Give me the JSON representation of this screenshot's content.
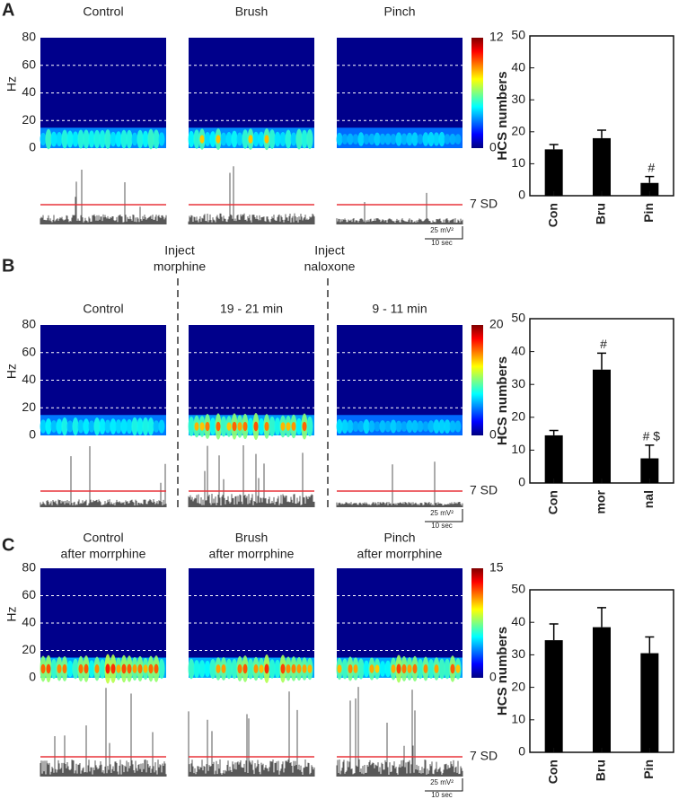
{
  "panels": [
    {
      "letter": "A",
      "titles": [
        [
          "Control"
        ],
        [
          "Brush"
        ],
        [
          "Pinch"
        ]
      ],
      "hz_label": "Hz",
      "hz_lim": [
        0,
        80
      ],
      "hz_ticks": [
        0,
        20,
        40,
        60,
        80
      ],
      "colorbar_ticks": [
        0,
        12
      ],
      "threshold_label": "7 SD",
      "scale_bar": [
        "25 mV²",
        "10 sec"
      ]
    },
    {
      "letter": "B",
      "injections": [
        [
          "Inject",
          "morphine"
        ],
        [
          "Inject",
          "naloxone"
        ]
      ],
      "titles": [
        [
          "Control"
        ],
        [
          "19 - 21 min"
        ],
        [
          "9 - 11 min"
        ]
      ],
      "hz_label": "Hz",
      "hz_lim": [
        0,
        80
      ],
      "hz_ticks": [
        0,
        20,
        40,
        60,
        80
      ],
      "colorbar_ticks": [
        0,
        20
      ],
      "threshold_label": "7 SD",
      "scale_bar": [
        "25 mV²",
        "10 sec"
      ]
    },
    {
      "letter": "C",
      "titles": [
        [
          "Control",
          "after morrphine"
        ],
        [
          "Brush",
          "after morrphine"
        ],
        [
          "Pinch",
          "after morrphine"
        ]
      ],
      "hz_label": "Hz",
      "hz_lim": [
        0,
        80
      ],
      "hz_ticks": [
        0,
        20,
        40,
        60,
        80
      ],
      "colorbar_ticks": [
        0,
        15
      ],
      "threshold_label": "7 SD",
      "scale_bar": [
        "25 mV²",
        "10 sec"
      ]
    }
  ],
  "chart_data": [
    {
      "type": "bar",
      "ylabel": "HCS numbers",
      "categories": [
        "Con",
        "Bru",
        "Pin"
      ],
      "values": [
        14.5,
        18,
        4
      ],
      "errors": [
        1.5,
        2.5,
        2
      ],
      "value_annotations": [
        null,
        null,
        "#"
      ],
      "color": "#000000",
      "ylim": [
        0,
        50
      ],
      "yticks": [
        0,
        10,
        20,
        30,
        40,
        50
      ]
    },
    {
      "type": "bar",
      "ylabel": "HCS numbers",
      "categories": [
        "Con",
        "mor",
        "nal"
      ],
      "values": [
        14.5,
        34.5,
        7.5
      ],
      "errors": [
        1.5,
        5,
        4
      ],
      "value_annotations": [
        null,
        "#",
        "# $"
      ],
      "color": "#000000",
      "ylim": [
        0,
        50
      ],
      "yticks": [
        0,
        10,
        20,
        30,
        40,
        50
      ]
    },
    {
      "type": "bar",
      "ylabel": "HCS numbers",
      "categories": [
        "Con",
        "Bru",
        "Pin"
      ],
      "values": [
        34.5,
        38.5,
        30.5
      ],
      "errors": [
        5,
        6,
        5
      ],
      "value_annotations": [
        null,
        null,
        null
      ],
      "color": "#000000",
      "ylim": [
        0,
        50
      ],
      "yticks": [
        0,
        10,
        20,
        30,
        40,
        50
      ]
    }
  ]
}
